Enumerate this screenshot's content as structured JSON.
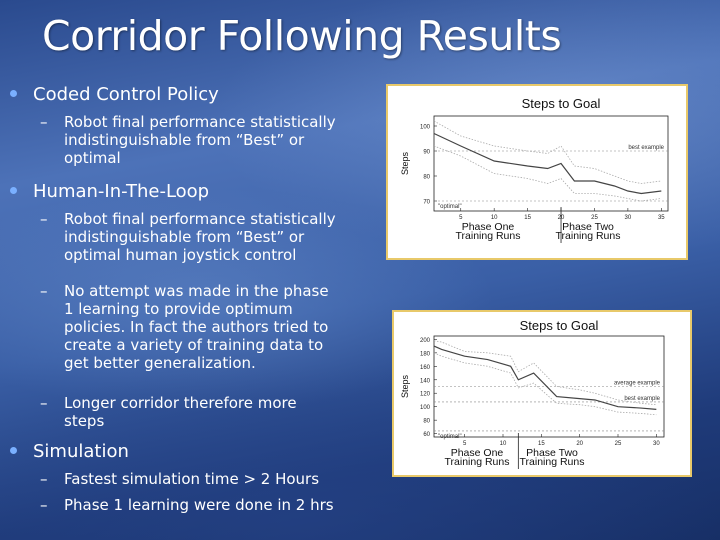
{
  "slide": {
    "title": "Corridor Following Results"
  },
  "bullets": [
    {
      "text": "Coded Control Policy",
      "subs": [
        "Robot final performance statistically indistinguishable from “Best” or optimal"
      ]
    },
    {
      "text": "Human-In-The-Loop",
      "subs": [
        "Robot final performance statistically indistinguishable from “Best” or optimal human joystick control",
        "No attempt was made in the phase 1 learning to provide optimum policies. In fact the authors tried to create a variety of training data to get better generalization.",
        "Longer corridor therefore more steps"
      ]
    },
    {
      "text": "Simulation",
      "subs": [
        "Fastest simulation time > 2 Hours",
        "Phase 1 learning were done in 2 hrs"
      ]
    }
  ],
  "sub_lines": {
    "b1s1": [
      "Robot final performance statistically",
      "indistinguishable from “Best” or",
      "optimal"
    ],
    "b2s1": [
      "Robot final performance statistically",
      "indistinguishable from “Best” or",
      "optimal human joystick control"
    ],
    "b2s2": [
      "No attempt was made in the phase",
      "1 learning to provide optimum",
      "policies. In fact the authors tried to",
      "create a variety of training data to",
      "get better generalization."
    ],
    "b2s3": [
      "Longer corridor therefore more",
      "steps"
    ],
    "b3s1": [
      "Fastest simulation time > 2 Hours"
    ],
    "b3s2": [
      "Phase 1 learning were done in 2 hrs"
    ]
  },
  "colors": {
    "bullet_dot": "#7ab0ff",
    "figure_border": "#e8c96a"
  },
  "chart_data": [
    {
      "type": "line",
      "title": "Steps to Goal",
      "ylabel": "Steps",
      "xlabel": [
        "Phase One Training Runs",
        "Phase Two Training Runs"
      ],
      "x_ticks": [
        5,
        10,
        15,
        20,
        25,
        30,
        35
      ],
      "y_ticks": [
        70,
        80,
        90,
        100
      ],
      "xlim": [
        1,
        36
      ],
      "ylim": [
        66,
        104
      ],
      "phase_split": 20,
      "annotations": [
        {
          "text": "best example",
          "y": 90
        },
        {
          "text": "\"optimal\"",
          "y": 70
        }
      ],
      "series": [
        {
          "name": "mean",
          "x": [
            1,
            5,
            10,
            15,
            18,
            20,
            22,
            25,
            28,
            30,
            32,
            35
          ],
          "y": [
            97,
            92,
            86,
            84,
            83,
            85,
            78,
            78,
            76,
            74,
            73,
            74
          ]
        },
        {
          "name": "upper",
          "x": [
            1,
            5,
            10,
            15,
            18,
            20,
            22,
            25,
            28,
            30,
            32,
            35
          ],
          "y": [
            102,
            96,
            92,
            90,
            89,
            92,
            84,
            83,
            80,
            78,
            77,
            78
          ]
        },
        {
          "name": "lower",
          "x": [
            1,
            5,
            10,
            15,
            18,
            20,
            22,
            25,
            28,
            30,
            32,
            35
          ],
          "y": [
            92,
            88,
            81,
            79,
            77,
            79,
            73,
            73,
            72,
            71,
            70,
            71
          ]
        }
      ]
    },
    {
      "type": "line",
      "title": "Steps to Goal",
      "ylabel": "Steps",
      "xlabel": [
        "Phase One Training Runs",
        "Phase Two Training Runs"
      ],
      "x_ticks": [
        5,
        10,
        15,
        20,
        25,
        30
      ],
      "y_ticks": [
        60,
        80,
        100,
        120,
        140,
        160,
        180,
        200
      ],
      "xlim": [
        1,
        31
      ],
      "ylim": [
        55,
        205
      ],
      "phase_split": 12,
      "annotations": [
        {
          "text": "average example",
          "y": 130
        },
        {
          "text": "best example",
          "y": 107
        },
        {
          "text": "\"optimal\"",
          "y": 64
        }
      ],
      "series": [
        {
          "name": "mean",
          "x": [
            1,
            2,
            5,
            8,
            11,
            12,
            14,
            17,
            20,
            22,
            25,
            28,
            30
          ],
          "y": [
            190,
            185,
            175,
            170,
            160,
            140,
            150,
            115,
            112,
            110,
            100,
            98,
            96
          ]
        },
        {
          "name": "upper",
          "x": [
            1,
            2,
            5,
            8,
            11,
            12,
            14,
            17,
            20,
            22,
            25,
            28,
            30
          ],
          "y": [
            198,
            196,
            182,
            180,
            175,
            152,
            165,
            130,
            125,
            120,
            110,
            105,
            103
          ]
        },
        {
          "name": "lower",
          "x": [
            1,
            2,
            5,
            8,
            11,
            12,
            14,
            17,
            20,
            22,
            25,
            28,
            30
          ],
          "y": [
            180,
            175,
            165,
            160,
            150,
            128,
            135,
            105,
            103,
            100,
            92,
            90,
            88
          ]
        }
      ]
    }
  ]
}
